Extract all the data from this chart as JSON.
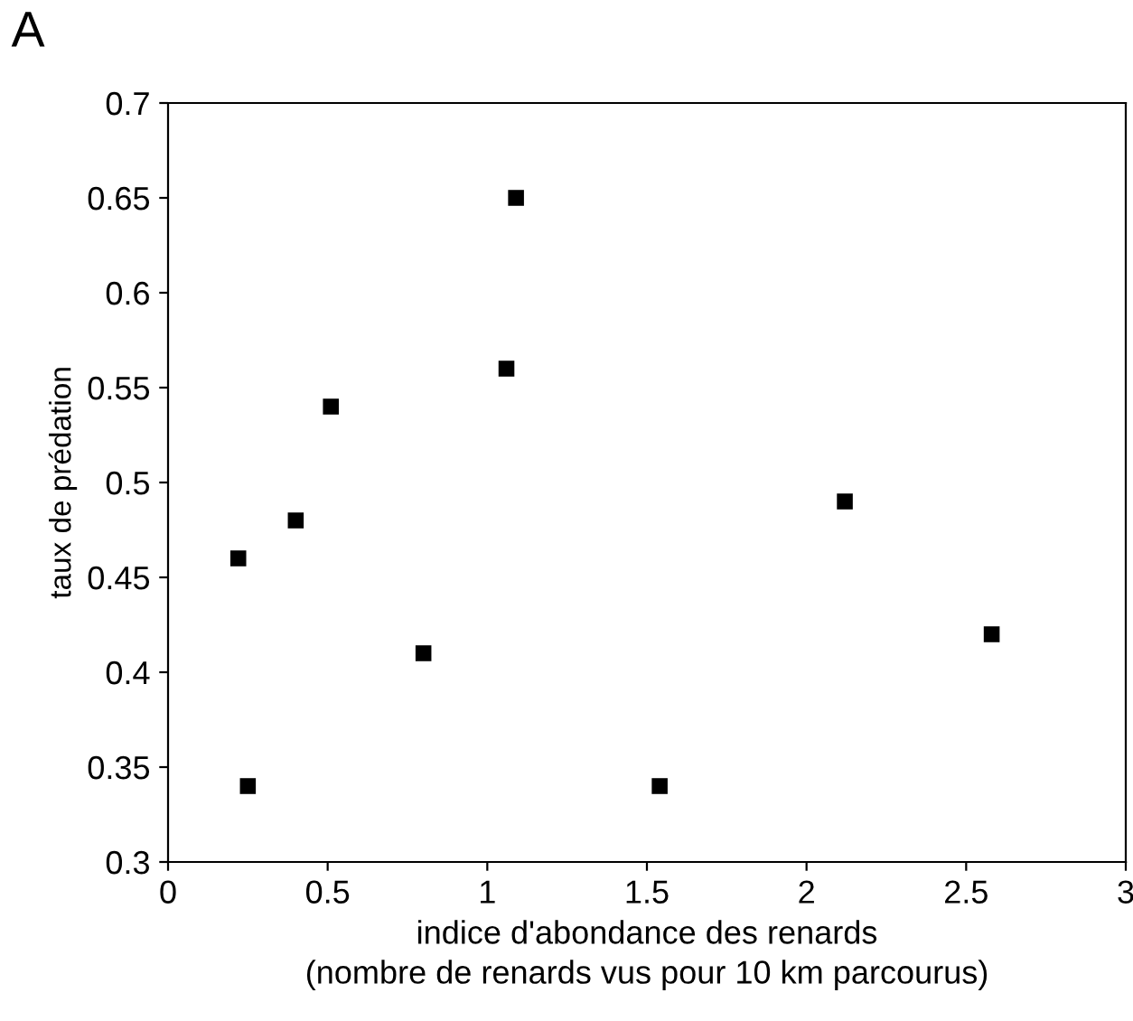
{
  "chart_data": {
    "type": "scatter",
    "title": "A",
    "xlabel": "indice d'abondance des renards\n(nombre de renards vus pour 10 km parcourus)",
    "ylabel": "taux de prédation",
    "x": [
      0.22,
      0.25,
      0.4,
      0.51,
      0.8,
      1.06,
      1.09,
      1.54,
      2.12,
      2.58
    ],
    "values": [
      0.46,
      0.34,
      0.48,
      0.54,
      0.41,
      0.56,
      0.65,
      0.34,
      0.49,
      0.42
    ],
    "color": "#000000",
    "marker": "square",
    "xlim": [
      0,
      3
    ],
    "xticks": [
      0,
      0.5,
      1,
      1.5,
      2,
      2.5,
      3
    ],
    "ylim": [
      0.3,
      0.7
    ],
    "yticks": [
      0.3,
      0.35,
      0.4,
      0.45,
      0.5,
      0.55,
      0.6,
      0.65,
      0.7
    ],
    "grid": false
  }
}
